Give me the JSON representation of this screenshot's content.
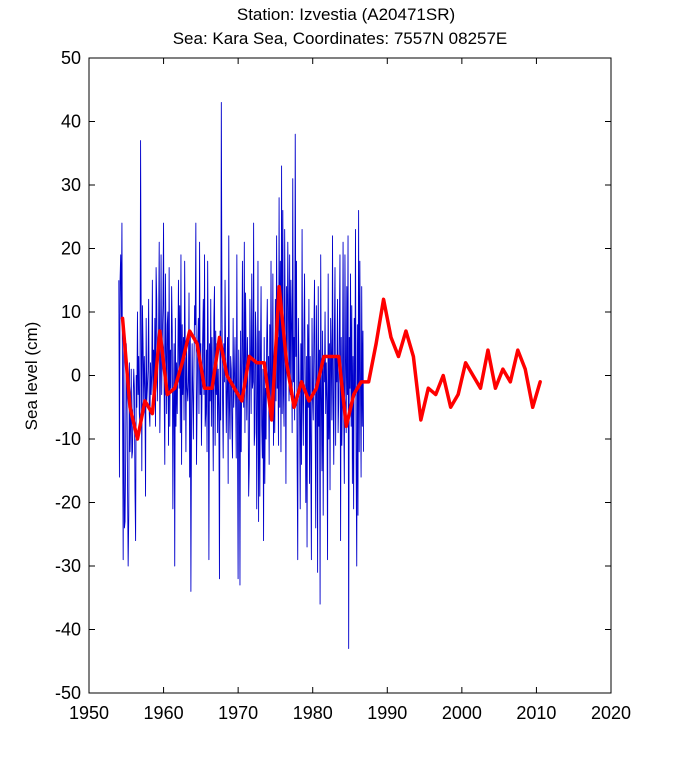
{
  "chart_data": {
    "type": "line",
    "title": "Station: Izvestia  (A20471SR)",
    "subtitle": "Sea: Kara Sea, Coordinates: 7557N 08257E",
    "xlabel": "",
    "ylabel": "Sea level (cm)",
    "xlim": [
      1950,
      2020
    ],
    "ylim": [
      -50,
      50
    ],
    "x_ticks": [
      1950,
      1960,
      1970,
      1980,
      1990,
      2000,
      2010,
      2020
    ],
    "y_ticks": [
      50,
      40,
      30,
      20,
      10,
      0,
      -10,
      -20,
      -30,
      -40,
      -50
    ],
    "grid": false,
    "colors": {
      "monthly": "#0000cc",
      "annual": "#ff0000"
    },
    "series": [
      {
        "style": "thin-line",
        "x_start": 1954.0,
        "x_step": 0.0833,
        "values": [
          15,
          -16,
          15,
          19,
          9,
          24,
          -5,
          -29,
          8,
          -24,
          -23,
          -13,
          5,
          -1,
          -17,
          -30,
          -22,
          2,
          -12,
          -8,
          1,
          -13,
          -12,
          -4,
          1,
          -2,
          -18,
          -26,
          0,
          -5,
          10,
          -3,
          3,
          -6,
          -8,
          37,
          9,
          -15,
          11,
          5,
          -4,
          3,
          -2,
          -19,
          9,
          -4,
          -2,
          1,
          12,
          -6,
          -8,
          2,
          -3,
          0,
          15,
          -5,
          4,
          -2,
          9,
          -8,
          17,
          12,
          -4,
          3,
          7,
          21,
          -9,
          0,
          19,
          -3,
          6,
          11,
          24,
          -3,
          -14,
          16,
          5,
          -6,
          8,
          10,
          -11,
          17,
          -8,
          4,
          -2,
          14,
          7,
          -21,
          -4,
          5,
          -30,
          9,
          -8,
          2,
          -6,
          3,
          15,
          -2,
          11,
          -9,
          19,
          -14,
          8,
          -3,
          6,
          -7,
          18,
          3,
          -12,
          5,
          -2,
          -4,
          -1,
          13,
          -16,
          7,
          -34,
          -8,
          5,
          -3,
          -10,
          2,
          11,
          8,
          24,
          -14,
          -5,
          5,
          9,
          -6,
          21,
          -3,
          5,
          -11,
          -2,
          6,
          12,
          -3,
          19,
          -8,
          -6,
          4,
          -12,
          18,
          3,
          -29,
          5,
          -4,
          12,
          -8,
          6,
          -2,
          -15,
          9,
          14,
          -11,
          7,
          -3,
          5,
          -9,
          1,
          -5,
          -32,
          7,
          -7,
          43,
          11,
          -4,
          -13,
          5,
          -1,
          15,
          3,
          -9,
          -2,
          6,
          -17,
          22,
          -5,
          -10,
          3,
          1,
          -8,
          -13,
          9,
          -5,
          -1,
          6,
          -3,
          -13,
          19,
          -8,
          -32,
          4,
          -3,
          -33,
          7,
          -12,
          2,
          18,
          -1,
          -5,
          21,
          -9,
          13,
          3,
          -7,
          6,
          -2,
          -19,
          -14,
          12,
          2,
          -6,
          16,
          -2,
          -1,
          24,
          -11,
          -9,
          10,
          5,
          -21,
          -4,
          18,
          -23,
          7,
          -19,
          3,
          14,
          -8,
          -13,
          1,
          -26,
          6,
          -17,
          -2,
          -10,
          5,
          12,
          -1,
          3,
          -14,
          8,
          -4,
          18,
          -7,
          -3,
          16,
          -11,
          3,
          -9,
          12,
          -4,
          22,
          -2,
          6,
          -11,
          28,
          -5,
          18,
          -12,
          33,
          -6,
          26,
          -3,
          -8,
          23,
          5,
          -17,
          14,
          2,
          21,
          11,
          -4,
          19,
          -3,
          15,
          8,
          -9,
          31,
          -1,
          6,
          -7,
          38,
          3,
          18,
          -13,
          -29,
          9,
          1,
          -6,
          -21,
          5,
          -14,
          23,
          -4,
          -11,
          7,
          16,
          -2,
          -20,
          3,
          -27,
          8,
          -5,
          12,
          -17,
          3,
          -12,
          -29,
          9,
          -3,
          -7,
          6,
          15,
          -5,
          -24,
          11,
          -2,
          -31,
          14,
          -8,
          4,
          -36,
          19,
          -3,
          -15,
          7,
          -22,
          3,
          -1,
          10,
          -6,
          2,
          -4,
          -29,
          16,
          -10,
          5,
          -18,
          9,
          3,
          -7,
          22,
          -3,
          -14,
          7,
          17,
          -11,
          3,
          -1,
          12,
          -9,
          -4,
          8,
          19,
          -26,
          6,
          -11,
          -3,
          21,
          -5,
          -17,
          19,
          2,
          -9,
          14,
          -3,
          22,
          -43,
          6,
          -2,
          16,
          -8,
          11,
          -17,
          3,
          -21,
          9,
          -3,
          23,
          -14,
          -30,
          8,
          -22,
          26,
          -12,
          18,
          -1,
          -16,
          14,
          -8,
          7,
          -12
        ]
      },
      {
        "style": "thick-line",
        "x": [
          1954.5,
          1955.5,
          1956.5,
          1957.5,
          1958.5,
          1959.5,
          1960.5,
          1961.5,
          1962.5,
          1963.5,
          1964.5,
          1965.5,
          1966.5,
          1967.5,
          1968.5,
          1969.5,
          1970.5,
          1971.5,
          1972.5,
          1973.5,
          1974.5,
          1975.5,
          1976.5,
          1977.5,
          1978.5,
          1979.5,
          1980.5,
          1981.5,
          1982.5,
          1983.5,
          1984.5,
          1985.5,
          1986.5,
          1987.5,
          1988.5,
          1989.5,
          1990.5,
          1991.5,
          1992.5,
          1993.5,
          1994.5,
          1995.5,
          1996.5,
          1997.5,
          1998.5,
          1999.5,
          2000.5,
          2001.5,
          2002.5,
          2003.5,
          2004.5,
          2005.5,
          2006.5,
          2007.5,
          2008.5,
          2009.5,
          2010.5
        ],
        "values": [
          9,
          -5,
          -10,
          -4,
          -6,
          7,
          -3,
          -2,
          2,
          7,
          5,
          -2,
          -2,
          6,
          0,
          -2,
          -4,
          3,
          2,
          2,
          -7,
          14,
          2,
          -5,
          -1,
          -4,
          -2,
          3,
          3,
          3,
          -8,
          -3,
          -1,
          -1,
          5,
          12,
          6,
          3,
          7,
          3,
          -7,
          -2,
          -3,
          0,
          -5,
          -3,
          2,
          0,
          -2,
          4,
          -2,
          1,
          -1,
          4,
          1,
          -5,
          -1
        ]
      }
    ]
  }
}
